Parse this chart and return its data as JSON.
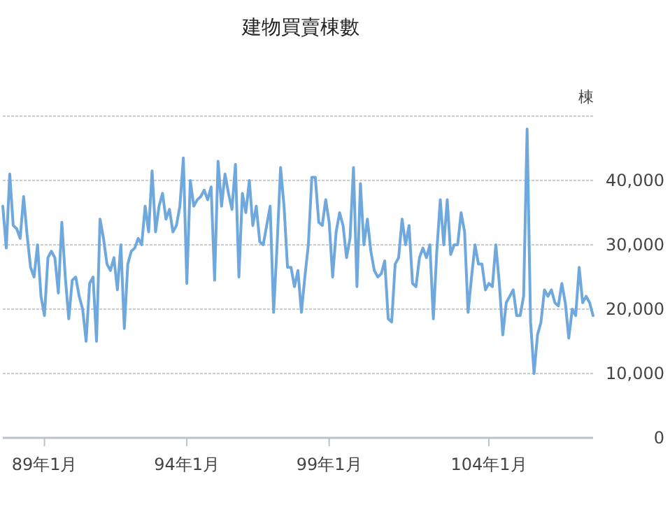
{
  "chart_data": {
    "type": "line",
    "title": "建物買賣棟數",
    "ylabel": "棟",
    "categories": [
      null,
      null,
      null,
      null,
      null,
      null,
      null,
      null,
      null,
      null,
      null,
      null,
      "89年1月",
      null,
      null,
      null,
      null,
      null,
      null,
      null,
      null,
      null,
      null,
      null,
      null,
      null,
      null,
      null,
      null,
      null,
      null,
      null,
      null,
      null,
      null,
      null,
      null,
      null,
      null,
      null,
      null,
      null,
      null,
      null,
      null,
      null,
      null,
      null,
      null,
      null,
      null,
      null,
      null,
      "94年1月",
      null,
      null,
      null,
      null,
      null,
      null,
      null,
      null,
      null,
      null,
      null,
      null,
      null,
      null,
      null,
      null,
      null,
      null,
      null,
      null,
      null,
      null,
      null,
      null,
      null,
      null,
      null,
      null,
      null,
      null,
      null,
      null,
      null,
      null,
      null,
      null,
      null,
      null,
      null,
      null,
      "99年1月",
      null,
      null,
      null,
      null,
      null,
      null,
      null,
      null,
      null,
      null,
      null,
      null,
      null,
      null,
      null,
      null,
      null,
      null,
      null,
      null,
      null,
      null,
      null,
      null,
      null,
      null,
      null,
      null,
      null,
      null,
      null,
      null,
      null,
      null,
      null,
      null,
      null,
      null,
      null,
      null,
      null,
      null,
      null,
      null,
      null,
      "104年1月",
      null,
      null,
      null,
      null,
      null,
      null,
      null,
      null,
      null,
      null,
      null,
      null,
      null,
      null,
      null,
      null,
      null,
      null,
      null,
      null,
      null,
      null,
      null,
      null,
      null,
      null,
      null,
      null,
      null,
      null
    ],
    "series": [
      {
        "color": "#6fa8dc",
        "values": [
          36000,
          29500,
          41000,
          33000,
          32500,
          31000,
          37500,
          31500,
          26500,
          25000,
          30000,
          22000,
          19000,
          28000,
          29000,
          28000,
          22500,
          33500,
          25000,
          18500,
          24500,
          25000,
          22000,
          20000,
          15000,
          24000,
          25000,
          15000,
          34000,
          31000,
          27000,
          26000,
          28000,
          23000,
          30000,
          17000,
          27000,
          29000,
          29500,
          31000,
          30000,
          36000,
          32000,
          41500,
          32000,
          36000,
          38000,
          34000,
          35500,
          32000,
          33000,
          36000,
          43500,
          24000,
          40000,
          36000,
          37000,
          37500,
          38500,
          37000,
          39000,
          24500,
          43000,
          36000,
          41000,
          38000,
          35500,
          42500,
          25000,
          38000,
          35000,
          40000,
          33000,
          36000,
          30500,
          30000,
          33000,
          36000,
          19500,
          30000,
          42000,
          36000,
          26500,
          26500,
          23500,
          26000,
          19500,
          25000,
          30000,
          40500,
          40500,
          33500,
          33000,
          37000,
          33500,
          25000,
          32000,
          35000,
          33000,
          28000,
          31000,
          42000,
          23500,
          39500,
          30000,
          34000,
          29000,
          26000,
          25000,
          25500,
          27500,
          18500,
          18000,
          27000,
          28000,
          34000,
          30000,
          33000,
          24000,
          23500,
          28000,
          29500,
          28000,
          30000,
          18500,
          29000,
          37000,
          30000,
          37000,
          28500,
          30000,
          30000,
          35000,
          32000,
          19500,
          25000,
          30000,
          27000,
          27000,
          23000,
          24000,
          23500,
          30000,
          24000,
          16000,
          21000,
          22000,
          23000,
          19000,
          19000,
          22000,
          48000,
          18000,
          10000,
          16000,
          18000,
          23000,
          22000,
          23000,
          21000,
          20500,
          24000,
          21000,
          15500,
          20000,
          19000,
          26500,
          21000,
          22000,
          21000,
          19000
        ]
      }
    ],
    "ylim": [
      0,
      50000
    ],
    "yticks": [
      0,
      {
        "value": 10000,
        "label": "10,000"
      },
      {
        "value": 20000,
        "label": "20,000"
      },
      {
        "value": 30000,
        "label": "30,000"
      },
      {
        "value": 40000,
        "label": "40,000"
      },
      {
        "value": 50000,
        "label": null
      }
    ],
    "grid": "y"
  }
}
